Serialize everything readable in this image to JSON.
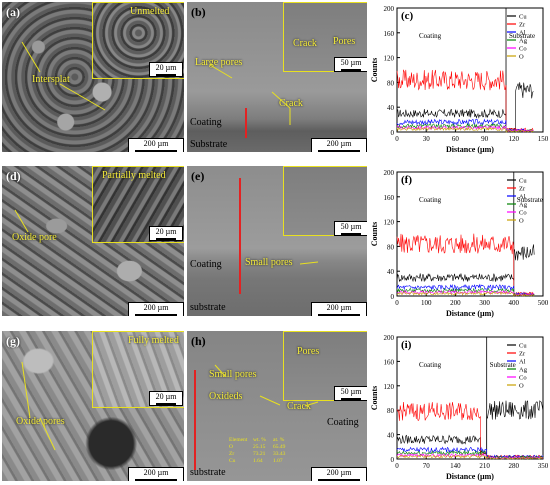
{
  "panels": {
    "a": {
      "label": "(a)",
      "inset_label": "Unmelted",
      "callouts": [
        "Intersplat"
      ],
      "scale_main": "200 µm",
      "scale_inset": "20 µm"
    },
    "b": {
      "label": "(b)",
      "callouts": [
        "Crack",
        "Pores",
        "Large pores",
        "Crack"
      ],
      "coating": "Coating",
      "substrate": "Substrate",
      "scale_main": "200 µm",
      "scale_inset": "50 µm"
    },
    "d": {
      "label": "(d)",
      "inset_label": "Partially melted",
      "callouts": [
        "Oxide pore"
      ],
      "scale_main": "200 µm",
      "scale_inset": "20 µm"
    },
    "e": {
      "label": "(e)",
      "callouts": [
        "Small pores"
      ],
      "coating": "Coating",
      "substrate": "substrate",
      "scale_main": "200 µm",
      "scale_inset": "50 µm"
    },
    "g": {
      "label": "(g)",
      "inset_label": "Fully melted",
      "callouts": [
        "Oxide pores"
      ],
      "scale_main": "200 µm",
      "scale_inset": "20 µm"
    },
    "h": {
      "label": "(h)",
      "callouts": [
        "Small pores",
        "Oxideds",
        "Pores",
        "Crack"
      ],
      "coating": "Coating",
      "substrate": "substrate",
      "scale_main": "200 µm",
      "scale_inset": "50 µm",
      "table": {
        "headers": [
          "Element",
          "wt. %",
          "at. %"
        ],
        "rows": [
          [
            "O",
            "25.15",
            "65.49"
          ],
          [
            "Zr",
            "73.21",
            "33.43"
          ],
          [
            "Cu",
            "1.64",
            "1.07"
          ]
        ]
      }
    }
  },
  "chart_data": [
    {
      "id": "c",
      "type": "line",
      "label": "(c)",
      "ylabel": "Counts",
      "xlabel": "Distance (µm)",
      "xlim": [
        0,
        150
      ],
      "ylim": [
        0,
        200
      ],
      "xticks": [
        0,
        30,
        60,
        90,
        120,
        150
      ],
      "yticks": [
        0,
        40,
        80,
        120,
        160,
        200
      ],
      "region_labels": [
        "Coating",
        "Substrate"
      ],
      "boundary_x": 112,
      "series": [
        {
          "name": "Cu",
          "color": "#000000",
          "segments": [
            [
              0,
              112,
              30
            ],
            [
              112,
              122,
              4
            ],
            [
              122,
              140,
              68
            ]
          ]
        },
        {
          "name": "Zr",
          "color": "#ff0000",
          "segments": [
            [
              0,
              112,
              84
            ],
            [
              112,
              140,
              4
            ]
          ]
        },
        {
          "name": "Al",
          "color": "#0000ff",
          "segments": [
            [
              0,
              112,
              16
            ],
            [
              112,
              140,
              3
            ]
          ]
        },
        {
          "name": "Ag",
          "color": "#008000",
          "segments": [
            [
              0,
              112,
              10
            ],
            [
              112,
              140,
              2
            ]
          ]
        },
        {
          "name": "Co",
          "color": "#ff00ff",
          "segments": [
            [
              0,
              112,
              7
            ],
            [
              112,
              140,
              2
            ]
          ]
        },
        {
          "name": "O",
          "color": "#c8a000",
          "segments": [
            [
              0,
              112,
              5
            ],
            [
              112,
              140,
              1
            ]
          ]
        }
      ]
    },
    {
      "id": "f",
      "type": "line",
      "label": "(f)",
      "ylabel": "Counts",
      "xlabel": "Distance (µm)",
      "xlim": [
        0,
        500
      ],
      "ylim": [
        0,
        200
      ],
      "xticks": [
        0,
        100,
        200,
        300,
        400,
        500
      ],
      "yticks": [
        0,
        40,
        80,
        120,
        160,
        200
      ],
      "region_labels": [
        "Coating",
        "Substrate"
      ],
      "boundary_x": 400,
      "series": [
        {
          "name": "Cu",
          "color": "#000000",
          "segments": [
            [
              0,
              400,
              30
            ],
            [
              400,
              470,
              70
            ]
          ]
        },
        {
          "name": "Zr",
          "color": "#ff0000",
          "segments": [
            [
              0,
              400,
              84
            ],
            [
              400,
              470,
              4
            ]
          ]
        },
        {
          "name": "Al",
          "color": "#0000ff",
          "segments": [
            [
              0,
              400,
              14
            ],
            [
              400,
              470,
              3
            ]
          ]
        },
        {
          "name": "Ag",
          "color": "#008000",
          "segments": [
            [
              0,
              400,
              9
            ],
            [
              400,
              470,
              2
            ]
          ]
        },
        {
          "name": "Co",
          "color": "#ff00ff",
          "segments": [
            [
              0,
              400,
              6
            ],
            [
              400,
              470,
              2
            ]
          ]
        },
        {
          "name": "O",
          "color": "#c8a000",
          "segments": [
            [
              0,
              400,
              4
            ],
            [
              400,
              470,
              1
            ]
          ]
        }
      ]
    },
    {
      "id": "i",
      "type": "line",
      "label": "(i)",
      "ylabel": "Counts",
      "xlabel": "Distance (µm)",
      "xlim": [
        0,
        350
      ],
      "ylim": [
        0,
        200
      ],
      "xticks": [
        0,
        70,
        140,
        210,
        280,
        350
      ],
      "yticks": [
        0,
        40,
        80,
        120,
        160,
        200
      ],
      "region_labels": [
        "Coating",
        "Substrate"
      ],
      "boundary_x": 215,
      "series": [
        {
          "name": "Cu",
          "color": "#000000",
          "segments": [
            [
              0,
              200,
              32
            ],
            [
              200,
              215,
              10
            ],
            [
              215,
              350,
              80
            ]
          ]
        },
        {
          "name": "Zr",
          "color": "#ff0000",
          "segments": [
            [
              0,
              200,
              78
            ],
            [
              200,
              215,
              10
            ],
            [
              215,
              350,
              4
            ]
          ]
        },
        {
          "name": "Al",
          "color": "#0000ff",
          "segments": [
            [
              0,
              215,
              15
            ],
            [
              215,
              350,
              4
            ]
          ]
        },
        {
          "name": "Ag",
          "color": "#008000",
          "segments": [
            [
              0,
              215,
              10
            ],
            [
              215,
              350,
              3
            ]
          ]
        },
        {
          "name": "Co",
          "color": "#ff00ff",
          "segments": [
            [
              0,
              215,
              6
            ],
            [
              215,
              350,
              2
            ]
          ]
        },
        {
          "name": "O",
          "color": "#c8a000",
          "segments": [
            [
              0,
              215,
              4
            ],
            [
              215,
              350,
              1
            ]
          ]
        }
      ]
    }
  ]
}
